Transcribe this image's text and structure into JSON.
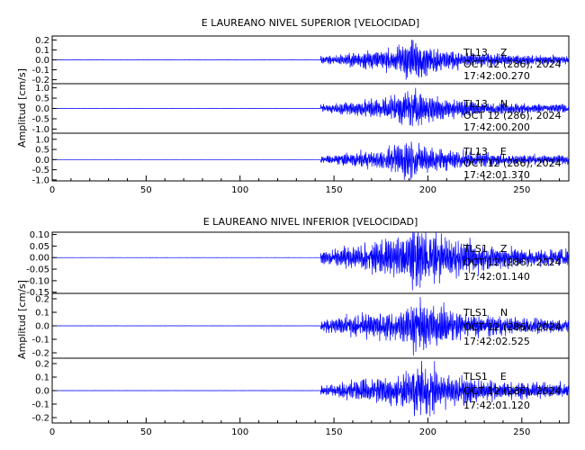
{
  "xaxis": {
    "ticks": [
      0,
      50,
      100,
      150,
      200,
      250
    ],
    "range": [
      0,
      275
    ]
  },
  "panels": [
    {
      "title": "E LAUREANO NIVEL SUPERIOR [VELOCIDAD]",
      "ylabel": "Amplitud [cm/s]",
      "traces": [
        {
          "station": "TL13",
          "component": "Z",
          "date": "OCT 12 (286), 2024",
          "time": "17:42:00.270",
          "ticks": [
            "0.2",
            "0.1",
            "0.0",
            "-0.1",
            "-0.2"
          ],
          "tick_values": [
            0.2,
            0.1,
            0.0,
            -0.1,
            -0.2
          ],
          "ylim": [
            -0.24,
            0.24
          ]
        },
        {
          "station": "TL13",
          "component": "N",
          "date": "OCT 12 (286), 2024",
          "time": "17:42:00.200",
          "ticks": [
            "1.0",
            "0.5",
            "0.0",
            "-0.5",
            "-1.0"
          ],
          "tick_values": [
            1.0,
            0.5,
            0.0,
            -0.5,
            -1.0
          ],
          "ylim": [
            -1.2,
            1.2
          ]
        },
        {
          "station": "TL13",
          "component": "E",
          "date": "OCT 12 (286), 2024",
          "time": "17:42:01.370",
          "ticks": [
            "1.0",
            "0.5",
            "0.0",
            "-0.5",
            "-1.0"
          ],
          "tick_values": [
            1.0,
            0.5,
            0.0,
            -0.5,
            -1.0
          ],
          "ylim": [
            -1.05,
            1.3
          ]
        }
      ]
    },
    {
      "title": "E LAUREANO NIVEL INFERIOR [VELOCIDAD]",
      "ylabel": "Amplitud [cm/s]",
      "traces": [
        {
          "station": "TLS1",
          "component": "Z",
          "date": "OCT 12 (286), 2024",
          "time": "17:42:01.140",
          "ticks": [
            "0.10",
            "0.05",
            "0.00",
            "-0.05",
            "-0.10",
            "-0.15"
          ],
          "tick_values": [
            0.1,
            0.05,
            0.0,
            -0.05,
            -0.1,
            -0.15
          ],
          "ylim": [
            -0.155,
            0.11
          ]
        },
        {
          "station": "TLS1",
          "component": "N",
          "date": "OCT 12 (286), 2024",
          "time": "17:42:02.525",
          "ticks": [
            "0.2",
            "0.1",
            "0.0",
            "-0.1",
            "-0.2"
          ],
          "tick_values": [
            0.2,
            0.1,
            0.0,
            -0.1,
            -0.2
          ],
          "ylim": [
            -0.24,
            0.24
          ]
        },
        {
          "station": "TLS1",
          "component": "E",
          "date": "OCT 12 (286), 2024",
          "time": "17:42:01.120",
          "ticks": [
            "0.2",
            "0.1",
            "0.0",
            "-0.1",
            "-0.2"
          ],
          "tick_values": [
            0.2,
            0.1,
            0.0,
            -0.1,
            -0.2
          ],
          "ylim": [
            -0.24,
            0.24
          ]
        }
      ]
    }
  ],
  "colors": {
    "trace": "#0000ff",
    "axes": "#000000",
    "background": "#ffffff"
  },
  "chart_data": [
    {
      "type": "line",
      "title": "E LAUREANO NIVEL SUPERIOR [VELOCIDAD]",
      "xlabel": "",
      "ylabel": "Amplitud [cm/s]",
      "xlim": [
        0,
        275
      ],
      "series": [
        {
          "name": "TL13 Z",
          "ylim": [
            -0.24,
            0.24
          ],
          "onset": 143,
          "peak_time": 190,
          "peak_amp": 0.2,
          "coda_end": 275
        },
        {
          "name": "TL13 N",
          "ylim": [
            -1.2,
            1.2
          ],
          "onset": 143,
          "peak_time": 190,
          "peak_amp": 1.0,
          "coda_end": 275
        },
        {
          "name": "TL13 E",
          "ylim": [
            -1.05,
            1.3
          ],
          "onset": 143,
          "peak_time": 190,
          "peak_amp": 1.0,
          "coda_end": 275
        }
      ]
    },
    {
      "type": "line",
      "title": "E LAUREANO NIVEL INFERIOR [VELOCIDAD]",
      "xlabel": "",
      "ylabel": "Amplitud [cm/s]",
      "xlim": [
        0,
        275
      ],
      "series": [
        {
          "name": "TLS1 Z",
          "ylim": [
            -0.155,
            0.11
          ],
          "onset": 143,
          "peak_time": 195,
          "peak_amp": 0.15,
          "coda_end": 275
        },
        {
          "name": "TLS1 N",
          "ylim": [
            -0.24,
            0.24
          ],
          "onset": 143,
          "peak_time": 195,
          "peak_amp": 0.22,
          "coda_end": 275
        },
        {
          "name": "TLS1 E",
          "ylim": [
            -0.24,
            0.24
          ],
          "onset": 143,
          "peak_time": 195,
          "peak_amp": 0.22,
          "coda_end": 275
        }
      ]
    }
  ]
}
